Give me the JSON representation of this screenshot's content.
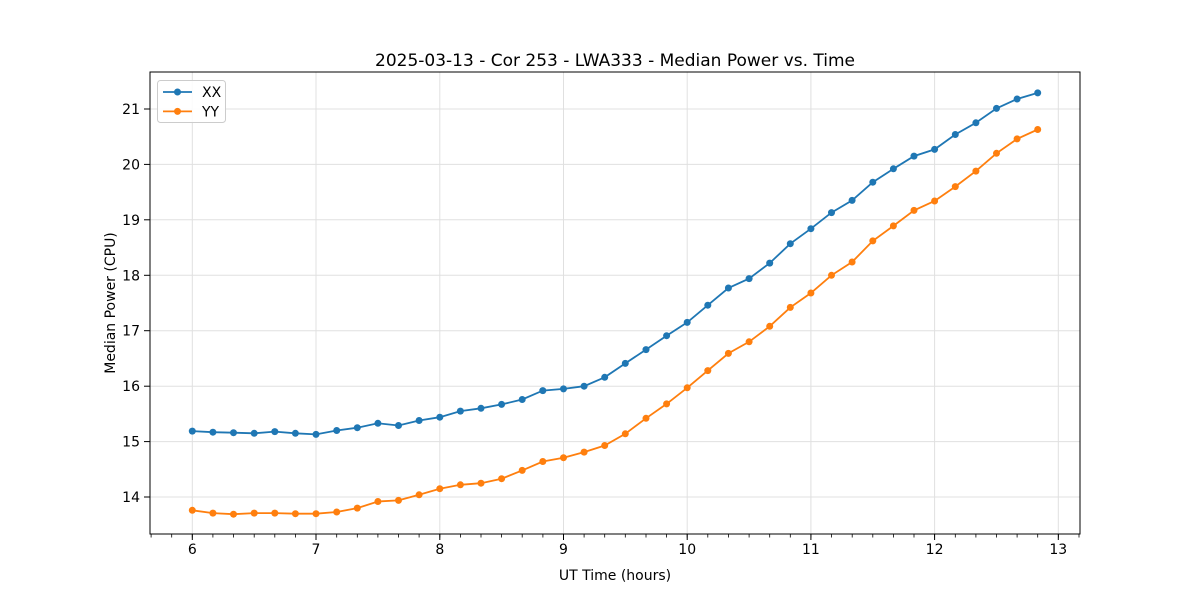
{
  "chart_data": {
    "type": "line",
    "title": "2025-03-13 - Cor 253 - LWA333 - Median Power vs. Time",
    "xlabel": "UT Time (hours)",
    "ylabel": "Median Power (CPU)",
    "xlim": [
      5.658,
      13.175
    ],
    "ylim": [
      13.333,
      21.667
    ],
    "x_ticks": [
      6,
      7,
      8,
      9,
      10,
      11,
      12,
      13
    ],
    "y_ticks": [
      14,
      15,
      16,
      17,
      18,
      19,
      20,
      21
    ],
    "x_minor_step": 0.166667,
    "grid": true,
    "grid_color": "#e0e0e0",
    "legend_position": "upper-left",
    "marker": "circle",
    "x": [
      6.0,
      6.1667,
      6.3333,
      6.5,
      6.6667,
      6.8333,
      7.0,
      7.1667,
      7.3333,
      7.5,
      7.6667,
      7.8333,
      8.0,
      8.1667,
      8.3333,
      8.5,
      8.6667,
      8.8333,
      9.0,
      9.1667,
      9.3333,
      9.5,
      9.6667,
      9.8333,
      10.0,
      10.1667,
      10.3333,
      10.5,
      10.6667,
      10.8333,
      11.0,
      11.1667,
      11.3333,
      11.5,
      11.6667,
      11.8333,
      12.0,
      12.1667,
      12.3333,
      12.5,
      12.6667,
      12.8333
    ],
    "series": [
      {
        "name": "XX",
        "color": "#1f77b4",
        "values": [
          15.19,
          15.17,
          15.16,
          15.15,
          15.18,
          15.15,
          15.13,
          15.2,
          15.25,
          15.33,
          15.29,
          15.38,
          15.44,
          15.55,
          15.6,
          15.67,
          15.76,
          15.92,
          15.95,
          16.0,
          16.16,
          16.41,
          16.66,
          16.91,
          17.15,
          17.46,
          17.77,
          17.94,
          18.22,
          18.57,
          18.84,
          19.13,
          19.35,
          19.68,
          19.92,
          20.15,
          20.27,
          20.54,
          20.75,
          21.01,
          21.18,
          21.29
        ]
      },
      {
        "name": "YY",
        "color": "#ff7f0e",
        "values": [
          13.76,
          13.71,
          13.69,
          13.71,
          13.71,
          13.7,
          13.7,
          13.73,
          13.8,
          13.92,
          13.94,
          14.04,
          14.15,
          14.22,
          14.25,
          14.33,
          14.48,
          14.64,
          14.71,
          14.81,
          14.93,
          15.14,
          15.42,
          15.68,
          15.97,
          16.28,
          16.59,
          16.8,
          17.08,
          17.42,
          17.68,
          18.0,
          18.24,
          18.62,
          18.89,
          19.17,
          19.34,
          19.6,
          19.88,
          20.2,
          20.46,
          20.63
        ]
      }
    ]
  }
}
